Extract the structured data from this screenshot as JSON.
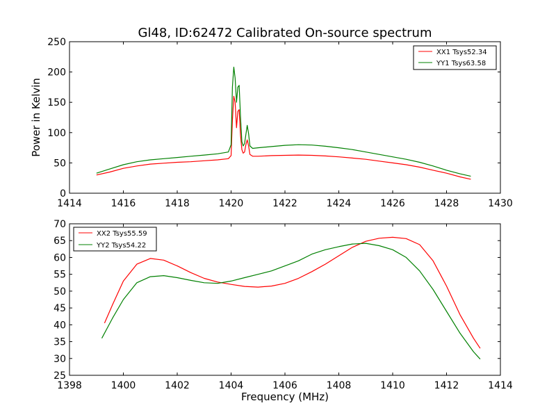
{
  "chart_data": [
    {
      "type": "line",
      "title": "Gl48, ID:62472 Calibrated On-source spectrum",
      "xlabel": "",
      "ylabel": "Power in Kelvin",
      "xlim": [
        1414,
        1430
      ],
      "ylim": [
        0,
        250
      ],
      "xticks": [
        1414,
        1416,
        1418,
        1420,
        1422,
        1424,
        1426,
        1428,
        1430
      ],
      "yticks": [
        0,
        50,
        100,
        150,
        200,
        250
      ],
      "legend_position": "top-right",
      "series": [
        {
          "name": "XX1 Tsys52.34",
          "color": "#ff0000",
          "x": [
            1415.0,
            1415.5,
            1416.0,
            1416.5,
            1417.0,
            1417.5,
            1418.0,
            1418.5,
            1419.0,
            1419.5,
            1419.9,
            1420.0,
            1420.05,
            1420.1,
            1420.15,
            1420.2,
            1420.25,
            1420.3,
            1420.35,
            1420.4,
            1420.45,
            1420.5,
            1420.55,
            1420.6,
            1420.65,
            1420.7,
            1420.8,
            1421.0,
            1421.5,
            1422.0,
            1422.5,
            1423.0,
            1423.5,
            1424.0,
            1424.5,
            1425.0,
            1425.5,
            1426.0,
            1426.5,
            1427.0,
            1427.5,
            1428.0,
            1428.5,
            1428.9
          ],
          "y": [
            30,
            35,
            41,
            45,
            48,
            49.5,
            51,
            52,
            53.5,
            55,
            57,
            62,
            120,
            160,
            150,
            108,
            135,
            138,
            95,
            72,
            66,
            68,
            80,
            88,
            78,
            64,
            61,
            61,
            62,
            62.5,
            63,
            62.5,
            61.5,
            60,
            58,
            56,
            53,
            50,
            47,
            43,
            38,
            33,
            27,
            23
          ]
        },
        {
          "name": "YY1 Tsys63.58",
          "color": "#008000",
          "x": [
            1415.0,
            1415.5,
            1416.0,
            1416.5,
            1417.0,
            1417.5,
            1418.0,
            1418.5,
            1419.0,
            1419.5,
            1419.9,
            1420.0,
            1420.05,
            1420.1,
            1420.15,
            1420.2,
            1420.25,
            1420.3,
            1420.35,
            1420.4,
            1420.45,
            1420.5,
            1420.55,
            1420.6,
            1420.65,
            1420.7,
            1420.8,
            1421.0,
            1421.5,
            1422.0,
            1422.5,
            1423.0,
            1423.5,
            1424.0,
            1424.5,
            1425.0,
            1425.5,
            1426.0,
            1426.5,
            1427.0,
            1427.5,
            1428.0,
            1428.5,
            1428.9
          ],
          "y": [
            33,
            40,
            47,
            52,
            55,
            57,
            59,
            61,
            63,
            65,
            68,
            80,
            175,
            208,
            190,
            150,
            175,
            178,
            125,
            85,
            78,
            82,
            97,
            112,
            98,
            78,
            74,
            75,
            77,
            79,
            80,
            79.5,
            77.5,
            75,
            72,
            68,
            64,
            60,
            56,
            51,
            45,
            38,
            32,
            28
          ]
        }
      ]
    },
    {
      "type": "line",
      "title": "",
      "xlabel": "Frequency (MHz)",
      "ylabel": "",
      "xlim": [
        1398,
        1414
      ],
      "ylim": [
        25,
        70
      ],
      "xticks": [
        1398,
        1400,
        1402,
        1404,
        1406,
        1408,
        1410,
        1412,
        1414
      ],
      "yticks": [
        25,
        30,
        35,
        40,
        45,
        50,
        55,
        60,
        65,
        70
      ],
      "legend_position": "top-left",
      "series": [
        {
          "name": "XX2 Tsys55.59",
          "color": "#ff0000",
          "x": [
            1399.3,
            1399.6,
            1400.0,
            1400.5,
            1401.0,
            1401.5,
            1402.0,
            1402.5,
            1403.0,
            1403.5,
            1404.0,
            1404.5,
            1405.0,
            1405.5,
            1406.0,
            1406.5,
            1407.0,
            1407.5,
            1408.0,
            1408.5,
            1409.0,
            1409.5,
            1410.0,
            1410.5,
            1411.0,
            1411.5,
            1412.0,
            1412.5,
            1413.0,
            1413.25
          ],
          "y": [
            40.5,
            46,
            53,
            58,
            59.7,
            59.2,
            57.5,
            55.5,
            53.8,
            52.7,
            52,
            51.4,
            51.2,
            51.5,
            52.3,
            53.8,
            55.8,
            58,
            60.5,
            63,
            64.8,
            65.7,
            66,
            65.6,
            63.8,
            59,
            51.5,
            43,
            36,
            33
          ]
        },
        {
          "name": "YY2 Tsys54.22",
          "color": "#008000",
          "x": [
            1399.2,
            1399.6,
            1400.0,
            1400.5,
            1401.0,
            1401.5,
            1402.0,
            1402.5,
            1403.0,
            1403.5,
            1404.0,
            1404.5,
            1405.0,
            1405.5,
            1406.0,
            1406.5,
            1407.0,
            1407.5,
            1408.0,
            1408.5,
            1409.0,
            1409.5,
            1410.0,
            1410.5,
            1411.0,
            1411.5,
            1412.0,
            1412.5,
            1413.0,
            1413.25
          ],
          "y": [
            36,
            42,
            47.5,
            52.5,
            54.3,
            54.6,
            54,
            53.2,
            52.5,
            52.3,
            53,
            54,
            55,
            56,
            57.5,
            59,
            61,
            62.3,
            63.2,
            64,
            64.2,
            63.5,
            62.3,
            60,
            56,
            50.5,
            44,
            37.5,
            32,
            29.8
          ]
        }
      ]
    }
  ]
}
